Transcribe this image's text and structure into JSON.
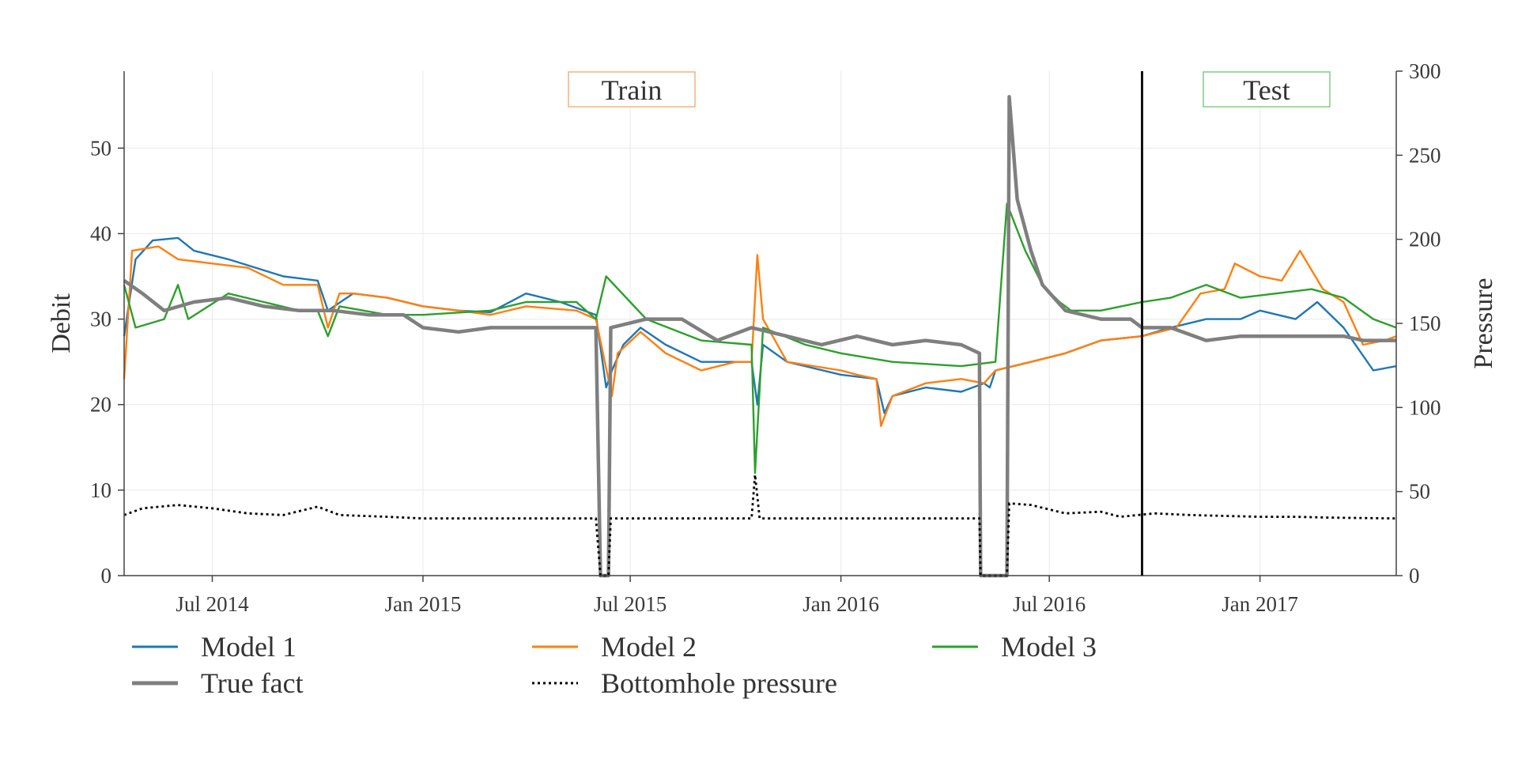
{
  "chart_data": {
    "type": "line",
    "xlabel": "",
    "ylabel": "Debit",
    "y2label": "Pressure",
    "xlim": [
      "2014-04-15",
      "2017-04-30"
    ],
    "ylim": [
      0,
      59
    ],
    "y2lim": [
      0,
      300
    ],
    "x_ticks": [
      "2014-07-01",
      "2015-01-01",
      "2015-07-01",
      "2016-01-01",
      "2016-07-01",
      "2017-01-01"
    ],
    "x_tick_labels": [
      "Jul 2014",
      "Jan 2015",
      "Jul 2015",
      "Jan 2016",
      "Jul 2016",
      "Jan 2017"
    ],
    "y_ticks": [
      0,
      10,
      20,
      30,
      40,
      50
    ],
    "y2_ticks": [
      0,
      50,
      100,
      150,
      200,
      250,
      300
    ],
    "grid": true,
    "legend_placement": "bottom",
    "split_date": "2016-09-20",
    "regions": [
      {
        "label": "Train",
        "border_color": "#f5b27a"
      },
      {
        "label": "Test",
        "border_color": "#7ccf82"
      }
    ],
    "series": [
      {
        "name": "Model 1",
        "color": "#1f77b4",
        "style": "solid",
        "axis": "left",
        "points": [
          [
            "2014-04-15",
            28
          ],
          [
            "2014-04-25",
            37
          ],
          [
            "2014-05-10",
            39.2
          ],
          [
            "2014-06-01",
            39.5
          ],
          [
            "2014-06-15",
            38
          ],
          [
            "2014-07-15",
            37
          ],
          [
            "2014-09-01",
            35
          ],
          [
            "2014-10-01",
            34.5
          ],
          [
            "2014-10-10",
            31
          ],
          [
            "2014-11-01",
            33
          ],
          [
            "2014-12-01",
            32.5
          ],
          [
            "2015-01-01",
            31.5
          ],
          [
            "2015-02-01",
            31
          ],
          [
            "2015-03-01",
            30.8
          ],
          [
            "2015-04-01",
            33
          ],
          [
            "2015-05-01",
            32
          ],
          [
            "2015-06-01",
            30.5
          ],
          [
            "2015-06-10",
            22
          ],
          [
            "2015-06-15",
            24
          ],
          [
            "2015-06-25",
            27
          ],
          [
            "2015-07-10",
            29
          ],
          [
            "2015-08-01",
            27
          ],
          [
            "2015-09-01",
            25
          ],
          [
            "2015-10-15",
            25
          ],
          [
            "2015-10-20",
            20
          ],
          [
            "2015-10-25",
            27
          ],
          [
            "2015-11-15",
            25
          ],
          [
            "2016-01-01",
            23.5
          ],
          [
            "2016-02-01",
            23
          ],
          [
            "2016-02-08",
            19
          ],
          [
            "2016-02-15",
            21
          ],
          [
            "2016-03-15",
            22
          ],
          [
            "2016-04-15",
            21.5
          ],
          [
            "2016-05-05",
            22.5
          ],
          [
            "2016-05-10",
            22
          ],
          [
            "2016-05-15",
            24
          ],
          [
            "2016-06-15",
            25
          ],
          [
            "2016-07-15",
            26
          ],
          [
            "2016-08-15",
            27.5
          ],
          [
            "2016-09-20",
            28
          ],
          [
            "2016-10-15",
            29
          ],
          [
            "2016-11-15",
            30
          ],
          [
            "2016-12-15",
            30
          ],
          [
            "2017-01-01",
            31
          ],
          [
            "2017-02-01",
            30
          ],
          [
            "2017-02-20",
            32
          ],
          [
            "2017-03-15",
            29
          ],
          [
            "2017-04-10",
            24
          ],
          [
            "2017-04-30",
            24.5
          ]
        ]
      },
      {
        "name": "Model 2",
        "color": "#ff7f0e",
        "style": "solid",
        "axis": "left",
        "points": [
          [
            "2014-04-15",
            23
          ],
          [
            "2014-04-22",
            38
          ],
          [
            "2014-05-15",
            38.5
          ],
          [
            "2014-06-01",
            37
          ],
          [
            "2014-07-01",
            36.5
          ],
          [
            "2014-08-01",
            36
          ],
          [
            "2014-09-01",
            34
          ],
          [
            "2014-10-01",
            34
          ],
          [
            "2014-10-10",
            29
          ],
          [
            "2014-10-20",
            33
          ],
          [
            "2014-11-01",
            33
          ],
          [
            "2014-12-01",
            32.5
          ],
          [
            "2015-01-01",
            31.5
          ],
          [
            "2015-02-01",
            31
          ],
          [
            "2015-03-01",
            30.5
          ],
          [
            "2015-04-01",
            31.5
          ],
          [
            "2015-05-15",
            31
          ],
          [
            "2015-06-01",
            30
          ],
          [
            "2015-06-15",
            21
          ],
          [
            "2015-06-20",
            26
          ],
          [
            "2015-07-10",
            28.5
          ],
          [
            "2015-08-01",
            26
          ],
          [
            "2015-09-01",
            24
          ],
          [
            "2015-10-01",
            25
          ],
          [
            "2015-10-15",
            25
          ],
          [
            "2015-10-20",
            37.5
          ],
          [
            "2015-10-25",
            30
          ],
          [
            "2015-11-15",
            25
          ],
          [
            "2016-01-01",
            24
          ],
          [
            "2016-01-15",
            23.5
          ],
          [
            "2016-02-01",
            23
          ],
          [
            "2016-02-05",
            17.5
          ],
          [
            "2016-02-15",
            21
          ],
          [
            "2016-03-15",
            22.5
          ],
          [
            "2016-04-15",
            23
          ],
          [
            "2016-05-05",
            22.5
          ],
          [
            "2016-05-15",
            24
          ],
          [
            "2016-06-15",
            25
          ],
          [
            "2016-07-15",
            26
          ],
          [
            "2016-08-15",
            27.5
          ],
          [
            "2016-09-20",
            28
          ],
          [
            "2016-10-20",
            29
          ],
          [
            "2016-11-10",
            33
          ],
          [
            "2016-12-01",
            33.5
          ],
          [
            "2016-12-10",
            36.5
          ],
          [
            "2017-01-01",
            35
          ],
          [
            "2017-01-20",
            34.5
          ],
          [
            "2017-02-05",
            38
          ],
          [
            "2017-02-25",
            33.5
          ],
          [
            "2017-03-15",
            32
          ],
          [
            "2017-04-01",
            27
          ],
          [
            "2017-04-20",
            27.5
          ],
          [
            "2017-04-30",
            28
          ]
        ]
      },
      {
        "name": "Model 3",
        "color": "#2ca02c",
        "style": "solid",
        "axis": "left",
        "points": [
          [
            "2014-04-15",
            34
          ],
          [
            "2014-04-25",
            29
          ],
          [
            "2014-05-20",
            30
          ],
          [
            "2014-06-01",
            34
          ],
          [
            "2014-06-10",
            30
          ],
          [
            "2014-07-15",
            33
          ],
          [
            "2014-08-15",
            32
          ],
          [
            "2014-09-15",
            31
          ],
          [
            "2014-10-01",
            31
          ],
          [
            "2014-10-10",
            28
          ],
          [
            "2014-10-20",
            31.5
          ],
          [
            "2014-12-01",
            30.5
          ],
          [
            "2015-01-01",
            30.5
          ],
          [
            "2015-03-01",
            31
          ],
          [
            "2015-04-01",
            32
          ],
          [
            "2015-05-15",
            32
          ],
          [
            "2015-06-01",
            30
          ],
          [
            "2015-06-10",
            35
          ],
          [
            "2015-07-01",
            32
          ],
          [
            "2015-07-15",
            30
          ],
          [
            "2015-09-01",
            27.5
          ],
          [
            "2015-10-15",
            27
          ],
          [
            "2015-10-18",
            12
          ],
          [
            "2015-10-25",
            29
          ],
          [
            "2015-12-01",
            27
          ],
          [
            "2016-01-01",
            26
          ],
          [
            "2016-02-15",
            25
          ],
          [
            "2016-04-15",
            24.5
          ],
          [
            "2016-05-15",
            25
          ],
          [
            "2016-05-25",
            43.5
          ],
          [
            "2016-06-10",
            38
          ],
          [
            "2016-06-25",
            34
          ],
          [
            "2016-07-10",
            32
          ],
          [
            "2016-07-20",
            31
          ],
          [
            "2016-08-15",
            31
          ],
          [
            "2016-09-20",
            32
          ],
          [
            "2016-10-15",
            32.5
          ],
          [
            "2016-11-15",
            34
          ],
          [
            "2016-12-15",
            32.5
          ],
          [
            "2017-01-15",
            33
          ],
          [
            "2017-02-15",
            33.5
          ],
          [
            "2017-03-15",
            32.5
          ],
          [
            "2017-04-10",
            30
          ],
          [
            "2017-04-30",
            29
          ]
        ]
      },
      {
        "name": "True fact",
        "color": "#7f7f7f",
        "style": "solid",
        "axis": "left",
        "points": [
          [
            "2014-04-15",
            34.5
          ],
          [
            "2014-05-01",
            33
          ],
          [
            "2014-05-20",
            31
          ],
          [
            "2014-06-15",
            32
          ],
          [
            "2014-07-15",
            32.5
          ],
          [
            "2014-08-15",
            31.5
          ],
          [
            "2014-09-15",
            31
          ],
          [
            "2014-10-15",
            31
          ],
          [
            "2014-11-15",
            30.5
          ],
          [
            "2014-12-15",
            30.5
          ],
          [
            "2015-01-01",
            29
          ],
          [
            "2015-02-01",
            28.5
          ],
          [
            "2015-03-01",
            29
          ],
          [
            "2015-04-01",
            29
          ],
          [
            "2015-05-01",
            29
          ],
          [
            "2015-06-01",
            29
          ],
          [
            "2015-06-05",
            0
          ],
          [
            "2015-06-12",
            0
          ],
          [
            "2015-06-14",
            29
          ],
          [
            "2015-07-15",
            30
          ],
          [
            "2015-08-15",
            30
          ],
          [
            "2015-09-15",
            27.5
          ],
          [
            "2015-10-15",
            29
          ],
          [
            "2015-11-15",
            28
          ],
          [
            "2015-12-15",
            27
          ],
          [
            "2016-01-15",
            28
          ],
          [
            "2016-02-15",
            27
          ],
          [
            "2016-03-15",
            27.5
          ],
          [
            "2016-04-15",
            27
          ],
          [
            "2016-05-01",
            26
          ],
          [
            "2016-05-02",
            0
          ],
          [
            "2016-05-25",
            0
          ],
          [
            "2016-05-27",
            56
          ],
          [
            "2016-06-03",
            44
          ],
          [
            "2016-06-15",
            38
          ],
          [
            "2016-06-25",
            34
          ],
          [
            "2016-07-15",
            31
          ],
          [
            "2016-08-15",
            30
          ],
          [
            "2016-09-10",
            30
          ],
          [
            "2016-09-20",
            29
          ],
          [
            "2016-10-15",
            29
          ],
          [
            "2016-11-15",
            27.5
          ],
          [
            "2016-12-15",
            28
          ],
          [
            "2017-01-15",
            28
          ],
          [
            "2017-02-15",
            28
          ],
          [
            "2017-03-15",
            28
          ],
          [
            "2017-04-01",
            27.5
          ],
          [
            "2017-04-30",
            27.5
          ]
        ]
      },
      {
        "name": "Bottomhole pressure",
        "color": "#000000",
        "style": "dotted",
        "axis": "right",
        "points": [
          [
            "2014-04-15",
            36
          ],
          [
            "2014-05-01",
            40
          ],
          [
            "2014-06-01",
            42
          ],
          [
            "2014-07-01",
            40
          ],
          [
            "2014-08-01",
            37
          ],
          [
            "2014-09-01",
            36
          ],
          [
            "2014-10-01",
            41
          ],
          [
            "2014-10-20",
            36
          ],
          [
            "2014-12-01",
            35
          ],
          [
            "2015-01-01",
            34
          ],
          [
            "2015-06-01",
            34
          ],
          [
            "2015-06-05",
            0
          ],
          [
            "2015-06-12",
            0
          ],
          [
            "2015-06-14",
            34
          ],
          [
            "2015-10-15",
            34
          ],
          [
            "2015-10-18",
            60
          ],
          [
            "2015-10-22",
            34
          ],
          [
            "2016-05-01",
            34
          ],
          [
            "2016-05-02",
            0
          ],
          [
            "2016-05-25",
            0
          ],
          [
            "2016-05-27",
            43
          ],
          [
            "2016-06-15",
            42
          ],
          [
            "2016-07-15",
            37
          ],
          [
            "2016-08-15",
            38
          ],
          [
            "2016-09-01",
            35
          ],
          [
            "2016-10-01",
            37
          ],
          [
            "2016-11-01",
            36
          ],
          [
            "2016-12-01",
            35.5
          ],
          [
            "2017-01-01",
            35
          ],
          [
            "2017-02-01",
            35
          ],
          [
            "2017-03-01",
            34.5
          ],
          [
            "2017-04-30",
            34
          ]
        ]
      }
    ]
  }
}
